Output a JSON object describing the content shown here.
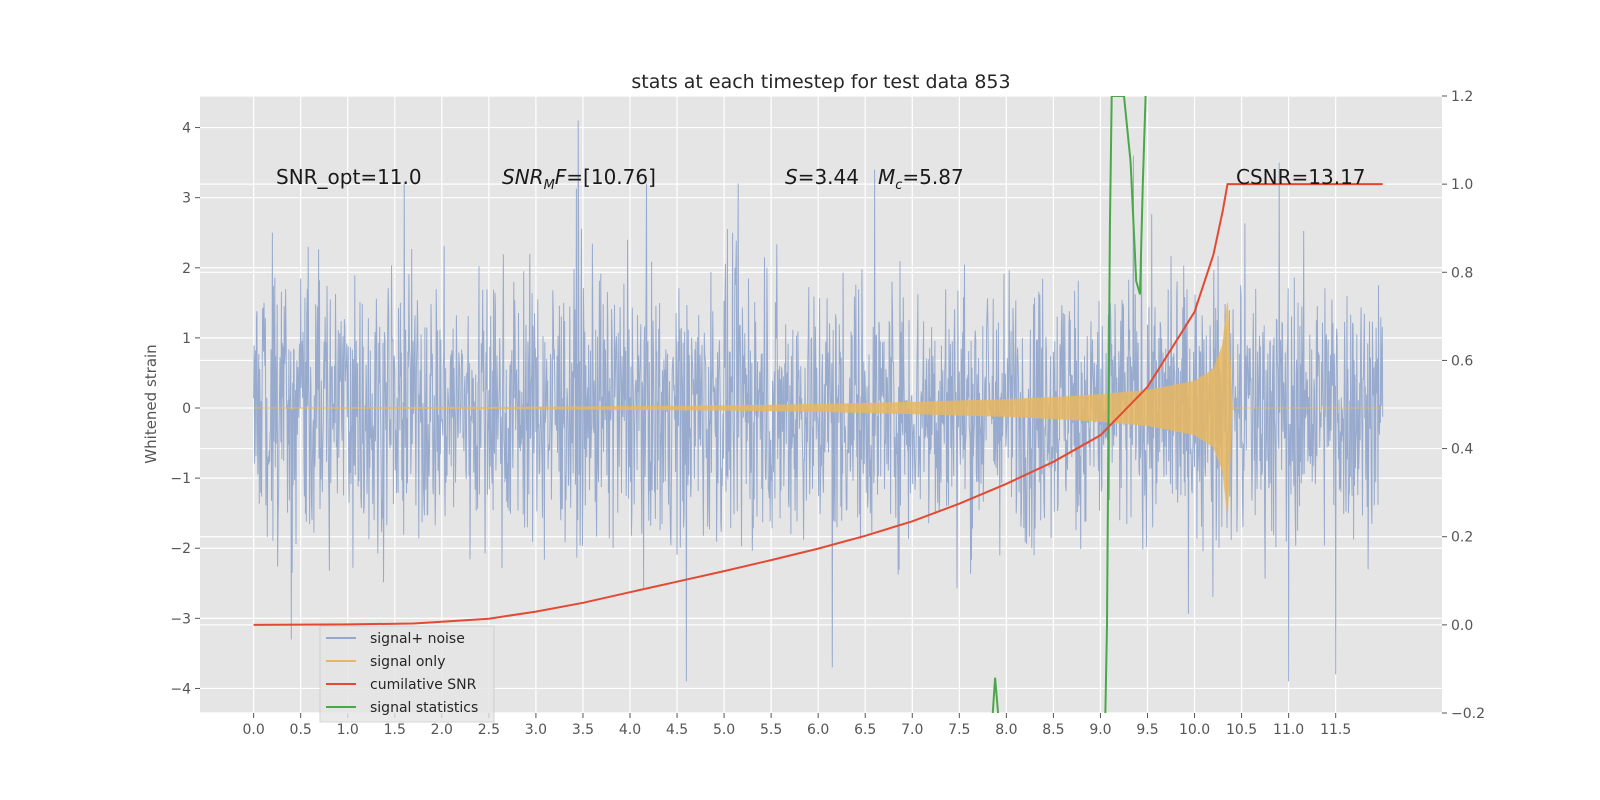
{
  "chart_data": {
    "type": "line",
    "title": "stats at each timestep for test data 853",
    "xlabel": "",
    "ylabel": "Whitened strain",
    "y2label": "",
    "xlim": [
      -0.57,
      12.63
    ],
    "ylim": [
      -4.35,
      4.45
    ],
    "y2lim": [
      -0.2,
      1.2
    ],
    "x_ticks": [
      "0.0",
      "0.5",
      "1.0",
      "1.5",
      "2.0",
      "2.5",
      "3.0",
      "3.5",
      "4.0",
      "4.5",
      "5.0",
      "5.5",
      "6.0",
      "6.5",
      "7.0",
      "7.5",
      "8.0",
      "8.5",
      "9.0",
      "9.5",
      "10.0",
      "10.5",
      "11.0",
      "11.5"
    ],
    "y_ticks": [
      "−4",
      "−3",
      "−2",
      "−1",
      "0",
      "1",
      "2",
      "3",
      "4"
    ],
    "y2_ticks": [
      "−0.2",
      "0.0",
      "0.2",
      "0.4",
      "0.6",
      "0.8",
      "1.0",
      "1.2"
    ],
    "grid": true,
    "legend_position": "lower-left",
    "annotations": {
      "snr_opt": "SNR_opt=11.0",
      "snr_mf_name": "SNR",
      "snr_mf_sub": "M",
      "snr_mf_tail": "F",
      "snr_mf_value": "=[10.76]",
      "s_name": "S",
      "s_value": "=3.44",
      "mc_name": "M",
      "mc_sub": "c",
      "mc_value": "=5.87",
      "csnr": "CSNR=13.17"
    },
    "series": [
      {
        "name": "signal+ noise",
        "color": "#94a8cc",
        "axis": "left",
        "x_range": [
          0.0,
          12.0
        ],
        "typical_range": [
          -2.0,
          2.0
        ],
        "peaks": [
          [
            0.2,
            2.5
          ],
          [
            1.6,
            3.2
          ],
          [
            3.45,
            4.1
          ],
          [
            5.15,
            3.2
          ],
          [
            6.6,
            3.4
          ],
          [
            9.35,
            3.6
          ],
          [
            10.9,
            3.5
          ],
          [
            0.4,
            -3.3
          ],
          [
            4.6,
            -3.9
          ],
          [
            6.15,
            -3.7
          ],
          [
            11.5,
            -3.8
          ],
          [
            11.0,
            -3.9
          ]
        ]
      },
      {
        "name": "signal only",
        "color": "#e8b860",
        "axis": "left",
        "points": [
          [
            0.0,
            0.0
          ],
          [
            3.0,
            0.01
          ],
          [
            5.0,
            0.03
          ],
          [
            6.0,
            0.05
          ],
          [
            7.0,
            0.08
          ],
          [
            8.0,
            0.12
          ],
          [
            8.5,
            0.15
          ],
          [
            9.0,
            0.19
          ],
          [
            9.5,
            0.25
          ],
          [
            10.0,
            0.38
          ],
          [
            10.2,
            0.55
          ],
          [
            10.3,
            0.9
          ],
          [
            10.35,
            1.5
          ],
          [
            10.4,
            0.0
          ],
          [
            12.0,
            0.0
          ]
        ]
      },
      {
        "name": "cumilative SNR",
        "color": "#e24a33",
        "axis": "right",
        "points": [
          [
            0.0,
            0.0
          ],
          [
            1.0,
            0.001
          ],
          [
            1.7,
            0.003
          ],
          [
            2.0,
            0.007
          ],
          [
            2.5,
            0.014
          ],
          [
            3.0,
            0.03
          ],
          [
            3.5,
            0.05
          ],
          [
            4.0,
            0.074
          ],
          [
            4.5,
            0.098
          ],
          [
            5.0,
            0.122
          ],
          [
            5.5,
            0.147
          ],
          [
            6.0,
            0.173
          ],
          [
            6.5,
            0.202
          ],
          [
            7.0,
            0.235
          ],
          [
            7.5,
            0.275
          ],
          [
            8.0,
            0.32
          ],
          [
            8.5,
            0.37
          ],
          [
            9.0,
            0.43
          ],
          [
            9.5,
            0.54
          ],
          [
            10.0,
            0.71
          ],
          [
            10.2,
            0.84
          ],
          [
            10.3,
            0.94
          ],
          [
            10.35,
            1.0
          ],
          [
            12.0,
            1.0
          ]
        ]
      },
      {
        "name": "signal statistics",
        "color": "#4aa84a",
        "axis": "right",
        "points": [
          [
            7.85,
            -0.22
          ],
          [
            7.88,
            -0.12
          ],
          [
            7.92,
            -0.22
          ],
          [
            9.05,
            -0.22
          ],
          [
            9.07,
            0.0
          ],
          [
            9.1,
            0.9
          ],
          [
            9.12,
            1.2
          ],
          [
            9.25,
            1.2
          ],
          [
            9.32,
            1.05
          ],
          [
            9.38,
            0.78
          ],
          [
            9.42,
            0.75
          ],
          [
            9.45,
            1.0
          ],
          [
            9.48,
            1.2
          ]
        ]
      }
    ]
  }
}
